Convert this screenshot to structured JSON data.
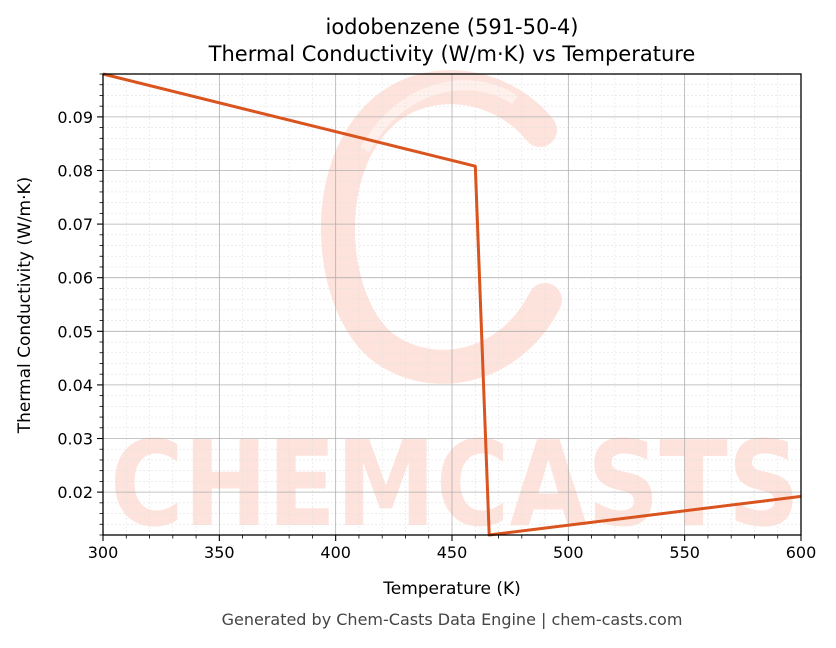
{
  "chart_data": {
    "type": "line",
    "title_line1": "iodobenzene (591-50-4)",
    "title_line2": "Thermal Conductivity (W/m·K) vs Temperature",
    "xlabel": "Temperature (K)",
    "ylabel": "Thermal Conductivity (W/m·K)",
    "xlim": [
      300,
      600
    ],
    "ylim": [
      0.012,
      0.098
    ],
    "x_ticks": [
      300,
      350,
      400,
      450,
      500,
      550,
      600
    ],
    "x_tick_labels": [
      "300",
      "350",
      "400",
      "450",
      "500",
      "550",
      "600"
    ],
    "y_ticks": [
      0.02,
      0.03,
      0.04,
      0.05,
      0.06,
      0.07,
      0.08,
      0.09
    ],
    "y_tick_labels": [
      "0.02",
      "0.03",
      "0.04",
      "0.05",
      "0.06",
      "0.07",
      "0.08",
      "0.09"
    ],
    "grid": true,
    "series": [
      {
        "color": "#d9541e",
        "points": [
          [
            300,
            0.098
          ],
          [
            460,
            0.0808
          ],
          [
            466,
            0.012
          ],
          [
            600,
            0.0192
          ]
        ]
      }
    ]
  },
  "footer": "Generated by Chem-Casts Data Engine | chem-casts.com",
  "watermark": "CHEMCASTS",
  "colors": {
    "line": "#d9541e",
    "watermark": "#fde3dc",
    "grid_major": "#b0b0b0",
    "grid_minor": "#e2e2e2"
  }
}
